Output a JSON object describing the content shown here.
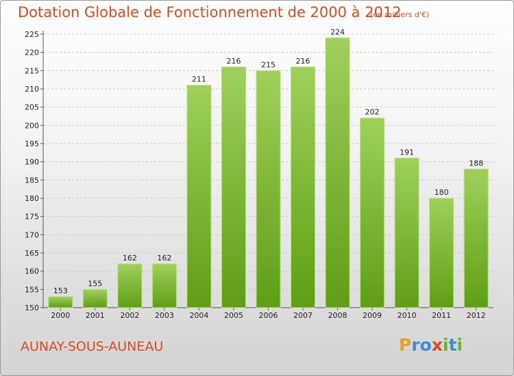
{
  "header": {
    "title": "Dotation Globale de Fonctionnement de 2000 à 2012",
    "unit": "(en milliers d'€)"
  },
  "footer": {
    "town": "AUNAY-SOUS-AUNEAU",
    "logo_letters": [
      "P",
      "r",
      "o",
      "x",
      "i",
      "t",
      "i"
    ]
  },
  "colors": {
    "title": "#e04a1a",
    "bar_top": "#9fd05a",
    "bar_bottom": "#5f9e14",
    "logo": [
      "#e8a020",
      "#3a8fd8",
      "#3a8fd8",
      "#e04a1a",
      "#6ab42a",
      "#3a8fd8",
      "#6ab42a"
    ]
  },
  "chart_data": {
    "type": "bar",
    "title": "Dotation Globale de Fonctionnement de 2000 à 2012",
    "subtitle": "(en milliers d'€)",
    "categories": [
      "2000",
      "2001",
      "2002",
      "2003",
      "2004",
      "2005",
      "2006",
      "2007",
      "2008",
      "2009",
      "2010",
      "2011",
      "2012"
    ],
    "values": [
      153,
      155,
      162,
      162,
      211,
      216,
      215,
      216,
      224,
      202,
      191,
      180,
      188
    ],
    "ylim": [
      150,
      225
    ],
    "yticks": [
      150,
      155,
      160,
      165,
      170,
      175,
      180,
      185,
      190,
      195,
      200,
      205,
      210,
      215,
      220,
      225
    ],
    "grid": true,
    "xlabel": "",
    "ylabel": ""
  }
}
